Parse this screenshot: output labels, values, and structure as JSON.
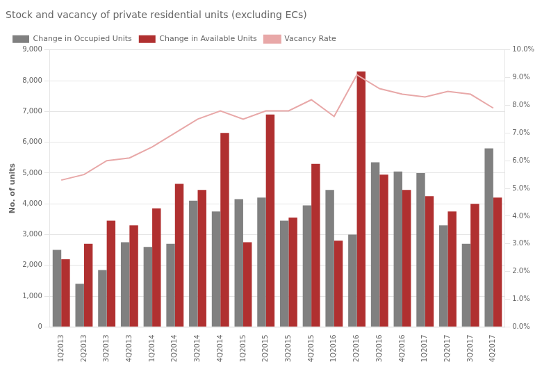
{
  "chart_data": {
    "type": "bar",
    "title": "Stock and vacancy of private residential units (excluding ECs)",
    "ylabel": "No. of units",
    "categories": [
      "1Q2013",
      "2Q2013",
      "3Q2013",
      "4Q2013",
      "1Q2014",
      "2Q2014",
      "3Q2014",
      "4Q2014",
      "1Q2015",
      "2Q2015",
      "3Q2015",
      "4Q2015",
      "1Q2016",
      "2Q2016",
      "3Q2016",
      "4Q2016",
      "1Q2017",
      "2Q2017",
      "3Q2017",
      "4Q2017"
    ],
    "series": [
      {
        "name": "Change in Occupied Units",
        "type": "bar",
        "color": "#808080",
        "values": [
          2500,
          1400,
          1850,
          2750,
          2600,
          2700,
          4100,
          3750,
          4150,
          4200,
          3450,
          3950,
          4450,
          3000,
          5350,
          5050,
          5000,
          3300,
          2700,
          5800
        ]
      },
      {
        "name": "Change in Available Units",
        "type": "bar",
        "color": "#b03030",
        "values": [
          2200,
          2700,
          3450,
          3300,
          3850,
          4650,
          4450,
          6300,
          2750,
          6900,
          3550,
          5300,
          2800,
          8300,
          4950,
          4450,
          4250,
          3750,
          4000,
          4200
        ]
      },
      {
        "name": "Vacancy Rate",
        "type": "line",
        "axis": "y2",
        "color": "#e8a8a8",
        "values": [
          5.3,
          5.5,
          6.0,
          6.1,
          6.5,
          7.0,
          7.5,
          7.8,
          7.5,
          7.8,
          7.8,
          8.2,
          7.6,
          9.1,
          8.6,
          8.4,
          8.3,
          8.5,
          8.4,
          7.9
        ]
      }
    ],
    "ylim": [
      0,
      9000
    ],
    "yticks": [
      0,
      {
        "value": 1000,
        "label": "1,000"
      },
      {
        "value": 2000,
        "label": "2,000"
      },
      {
        "value": 3000,
        "label": "3,000"
      },
      {
        "value": 4000,
        "label": "4,000"
      },
      {
        "value": 5000,
        "label": "5,000"
      },
      {
        "value": 6000,
        "label": "6,000"
      },
      {
        "value": 7000,
        "label": "7,000"
      },
      {
        "value": 8000,
        "label": "8,000"
      },
      {
        "value": 9000,
        "label": "9,000"
      }
    ],
    "y2lim": [
      0,
      10.0
    ],
    "y2ticks": [
      {
        "value": 0,
        "label": "0.0%"
      },
      {
        "value": 1,
        "label": "1.0%"
      },
      {
        "value": 2,
        "label": "2.0%"
      },
      {
        "value": 3,
        "label": "3.0%"
      },
      {
        "value": 4,
        "label": "4.0%"
      },
      {
        "value": 5,
        "label": "5.0%"
      },
      {
        "value": 6,
        "label": "6.0%"
      },
      {
        "value": 7,
        "label": "7.0%"
      },
      {
        "value": 8,
        "label": "8.0%"
      },
      {
        "value": 9,
        "label": "9.0%"
      },
      {
        "value": 10,
        "label": "10.0%"
      }
    ],
    "grid": true,
    "legend": "upper left"
  }
}
